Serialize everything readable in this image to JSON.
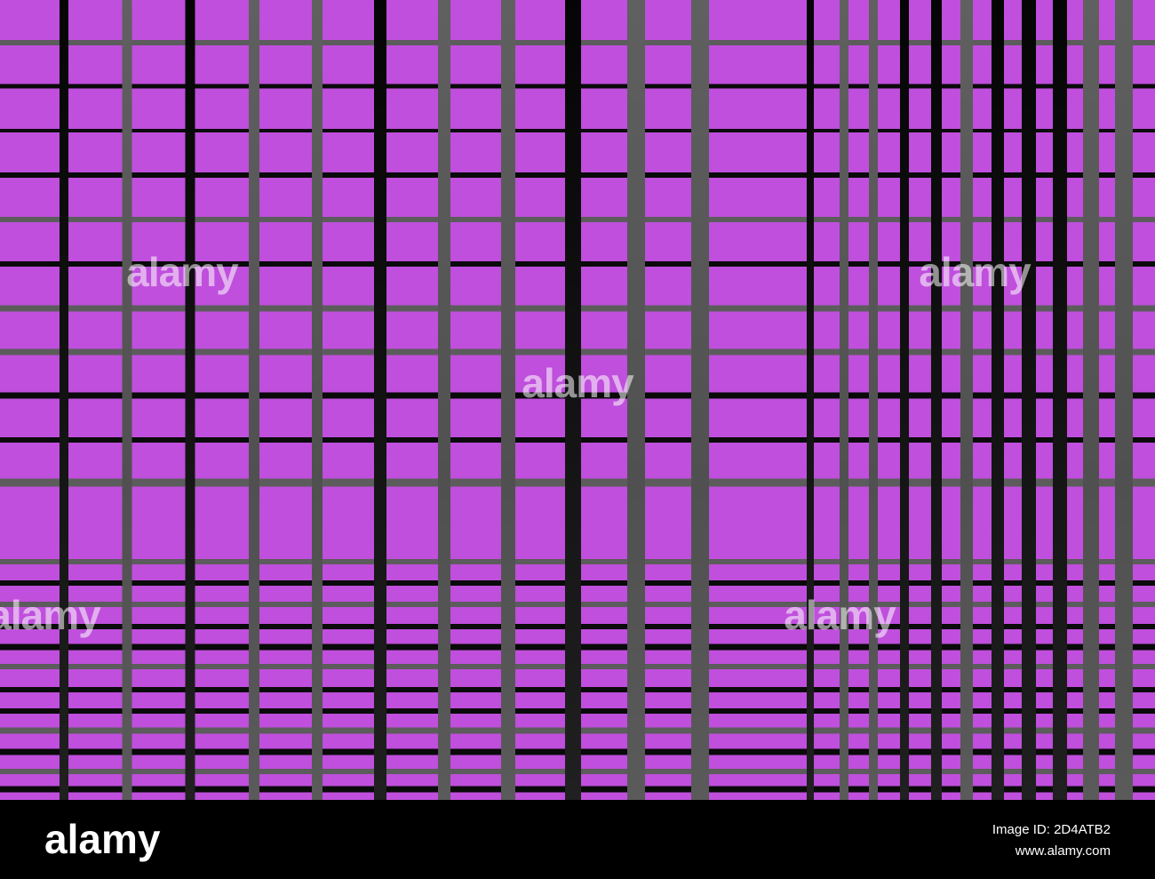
{
  "image": {
    "watermarks": [
      "alamy",
      "alamy",
      "alamy",
      "alamy",
      "alamy"
    ]
  },
  "footer": {
    "logo": "alamy",
    "image_id": "Image ID: 2D4ATB2",
    "url": "www.alamy.com"
  }
}
